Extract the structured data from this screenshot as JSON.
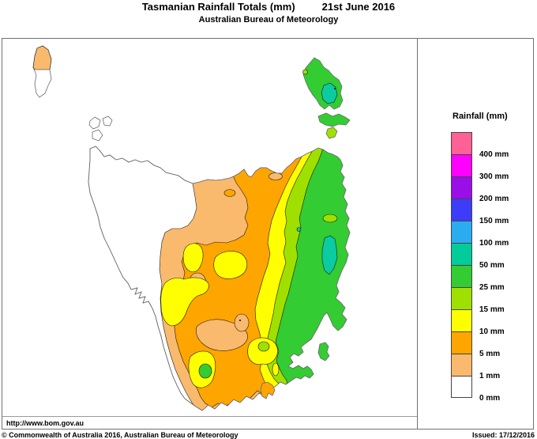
{
  "title": {
    "main": "Tasmanian Rainfall Totals (mm)",
    "date": "21st June 2016"
  },
  "subtitle": "Australian Bureau of Meteorology",
  "url_note": "http://www.bom.gov.au",
  "footer": {
    "copyright": "© Commonwealth of Australia 2016, Australian Bureau of Meteorology",
    "issued": "Issued: 17/12/2016"
  },
  "legend": {
    "title": "Rainfall (mm)",
    "entries": [
      {
        "label": "400 mm",
        "color": "#FF6196"
      },
      {
        "label": "300 mm",
        "color": "#FF00FF"
      },
      {
        "label": "200 mm",
        "color": "#9A0EE8"
      },
      {
        "label": "150 mm",
        "color": "#3C3CFA"
      },
      {
        "label": "100 mm",
        "color": "#2BACF0"
      },
      {
        "label": "50 mm",
        "color": "#00CC99"
      },
      {
        "label": "25 mm",
        "color": "#33CC33"
      },
      {
        "label": "15 mm",
        "color": "#A0E000"
      },
      {
        "label": "10 mm",
        "color": "#FFFF00"
      },
      {
        "label": "5 mm",
        "color": "#FFA500"
      },
      {
        "label": "1 mm",
        "color": "#F9BA6E"
      },
      {
        "label": "0 mm",
        "color": "#FFFFFF"
      }
    ]
  },
  "map_palette": {
    "white": "#FFFFFF",
    "sandy": "#F9BA6E",
    "orange": "#FFA500",
    "yellow": "#FFFF00",
    "yellow_green": "#A0E000",
    "green": "#33CC33",
    "teal": "#0ACCA0"
  }
}
